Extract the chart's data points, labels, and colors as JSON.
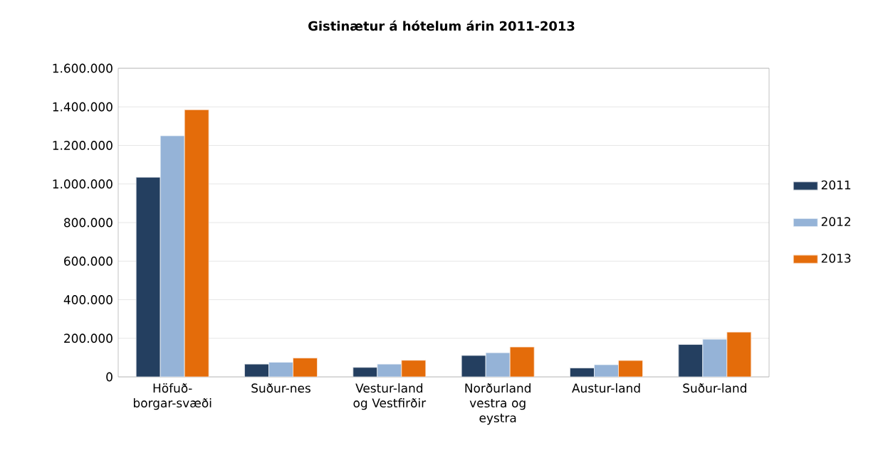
{
  "chart_data": {
    "type": "bar",
    "title": "Gistinætur á hótelum árin 2011-2013",
    "categories": [
      "Höfuð-borgar-svæði",
      "Suður-nes",
      "Vestur-land og Vestfirðir",
      "Norðurland vestra og eystra",
      "Austur-land",
      "Suður-land"
    ],
    "series": [
      {
        "name": "2011",
        "color": "#243f60",
        "values": [
          1035000,
          66000,
          49000,
          111000,
          46000,
          168000
        ]
      },
      {
        "name": "2012",
        "color": "#95b3d7",
        "values": [
          1250000,
          76000,
          66000,
          125000,
          63000,
          195000
        ]
      },
      {
        "name": "2013",
        "color": "#e46c0a",
        "values": [
          1385000,
          98000,
          86000,
          155000,
          85000,
          232000
        ]
      }
    ],
    "ylim": [
      0,
      1600000
    ],
    "yticks": [
      0,
      {
        "value": 200000,
        "label": "200.000"
      },
      {
        "value": 400000,
        "label": "400.000"
      },
      {
        "value": 600000,
        "label": "600.000"
      },
      {
        "value": 800000,
        "label": "800.000"
      },
      {
        "value": 1000000,
        "label": "1.000.000"
      },
      {
        "value": 1200000,
        "label": "1.200.000"
      },
      {
        "value": 1400000,
        "label": "1.400.000"
      },
      {
        "value": 1600000,
        "label": "1.600.000"
      }
    ],
    "grid": "y",
    "legend": "right"
  }
}
